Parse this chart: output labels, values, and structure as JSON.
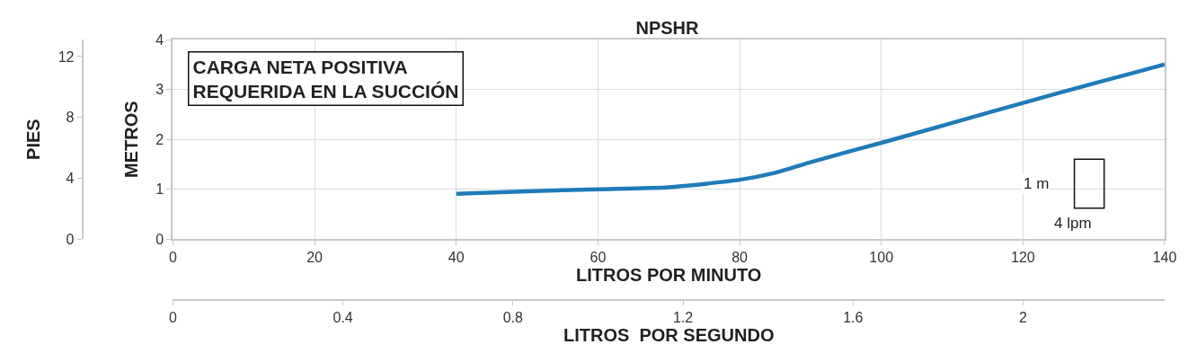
{
  "chart_data": {
    "type": "line",
    "title": "NPSHR",
    "xlabel": "LITROS POR MINUTO",
    "ylabel": "METROS",
    "y2label": "PIES",
    "x2label": "LITROS  POR SEGUNDO",
    "x": [
      40,
      50,
      60,
      70,
      80,
      85,
      90,
      95,
      100,
      110,
      120,
      130,
      140
    ],
    "series": [
      {
        "color": "#1f7bb8",
        "values": [
          0.91,
          0.96,
          1.0,
          1.04,
          1.19,
          1.33,
          1.54,
          1.74,
          1.93,
          2.33,
          2.73,
          3.12,
          3.5
        ]
      }
    ],
    "xlim": [
      0,
      140
    ],
    "xticks": [
      0,
      20,
      40,
      60,
      80,
      100,
      120,
      140
    ],
    "ylim": [
      0,
      4
    ],
    "yticks": [
      0,
      1,
      2,
      3,
      4
    ],
    "y2lim": [
      0,
      13.12
    ],
    "y2ticks": [
      0,
      4,
      8,
      12
    ],
    "x2lim": [
      0,
      2.333
    ],
    "x2ticks": [
      0,
      0.4,
      0.8,
      1.2,
      1.6,
      2
    ],
    "grid": true,
    "marker": "none",
    "line_style": "solid",
    "annotations": [
      "CARGA NETA POSITIVA\nREQUERIDA EN LA SUCCIÓN",
      "1 m",
      "4 lpm"
    ]
  }
}
